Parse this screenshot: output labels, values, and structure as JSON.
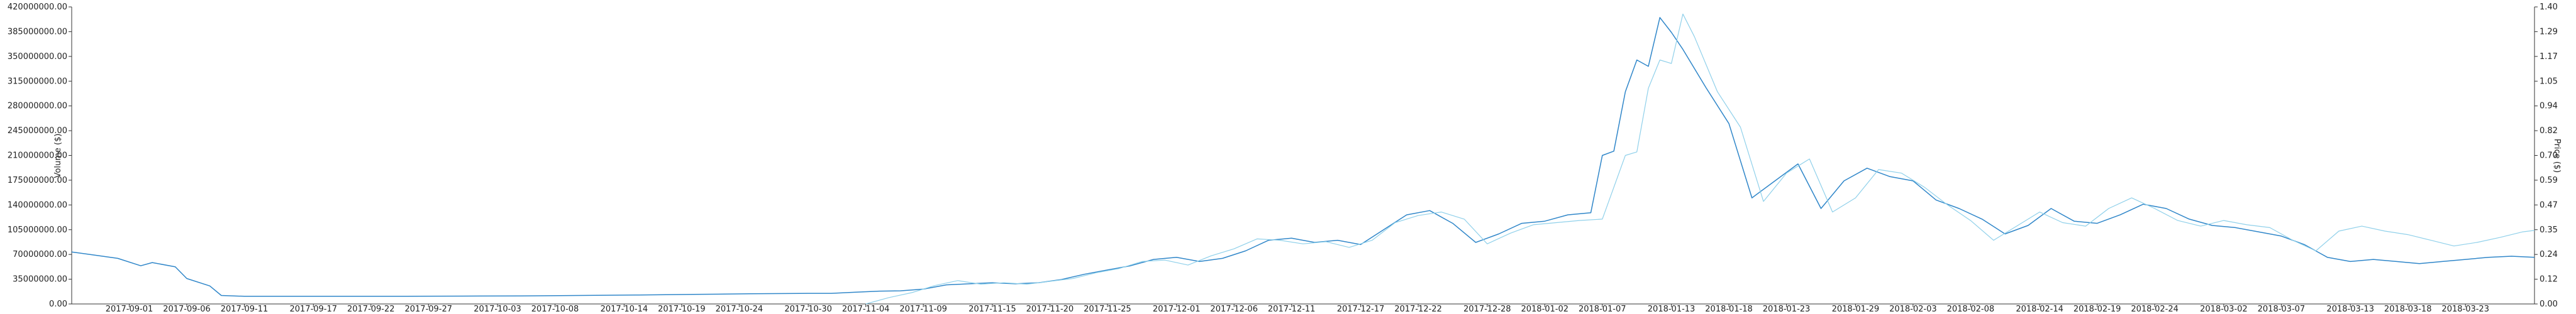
{
  "chart_data": {
    "type": "line",
    "title": "",
    "xlabel": "",
    "ylabel_left": "Volume ($)",
    "ylabel_right": "Price ($)",
    "ylim_left": [
      0,
      420000000
    ],
    "ylim_right": [
      0,
      1.4
    ],
    "grid": false,
    "legend": "none",
    "x_range": [
      "2017-08-27",
      "2018-03-29"
    ],
    "left_ticks": [
      "0.00",
      "35000000.00",
      "70000000.00",
      "105000000.00",
      "140000000.00",
      "175000000.00",
      "210000000.00",
      "245000000.00",
      "280000000.00",
      "315000000.00",
      "350000000.00",
      "385000000.00",
      "420000000.00"
    ],
    "right_ticks": [
      "0.00",
      "0.12",
      "0.24",
      "0.35",
      "0.47",
      "0.59",
      "0.70",
      "0.82",
      "0.94",
      "1.05",
      "1.17",
      "1.29",
      "1.40"
    ],
    "x_ticks": [
      "2017-09-01",
      "2017-09-06",
      "2017-09-11",
      "2017-09-17",
      "2017-09-22",
      "2017-09-27",
      "2017-10-03",
      "2017-10-08",
      "2017-10-14",
      "2017-10-19",
      "2017-10-24",
      "2017-10-30",
      "2017-11-04",
      "2017-11-09",
      "2017-11-15",
      "2017-11-20",
      "2017-11-25",
      "2017-12-01",
      "2017-12-06",
      "2017-12-11",
      "2017-12-17",
      "2017-12-22",
      "2017-12-28",
      "2018-01-02",
      "2018-01-07",
      "2018-01-13",
      "2018-01-18",
      "2018-01-23",
      "2018-01-29",
      "2018-02-03",
      "2018-02-08",
      "2018-02-14",
      "2018-02-19",
      "2018-02-24",
      "2018-03-02",
      "2018-03-07",
      "2018-03-13",
      "2018-03-18",
      "2018-03-23"
    ],
    "series": [
      {
        "key": "price",
        "axis": "right",
        "color": "#2f86c9",
        "points": [
          [
            "2017-08-27",
            0.245
          ],
          [
            "2017-08-29",
            0.23
          ],
          [
            "2017-08-31",
            0.215
          ],
          [
            "2017-09-02",
            0.18
          ],
          [
            "2017-09-03",
            0.195
          ],
          [
            "2017-09-05",
            0.175
          ],
          [
            "2017-09-06",
            0.12
          ],
          [
            "2017-09-08",
            0.085
          ],
          [
            "2017-09-09",
            0.04
          ],
          [
            "2017-09-11",
            0.036
          ],
          [
            "2017-09-15",
            0.036
          ],
          [
            "2017-09-20",
            0.036
          ],
          [
            "2017-09-25",
            0.036
          ],
          [
            "2017-09-30",
            0.037
          ],
          [
            "2017-10-05",
            0.038
          ],
          [
            "2017-10-10",
            0.04
          ],
          [
            "2017-10-15",
            0.042
          ],
          [
            "2017-10-20",
            0.045
          ],
          [
            "2017-10-25",
            0.048
          ],
          [
            "2017-10-30",
            0.05
          ],
          [
            "2017-11-01",
            0.05
          ],
          [
            "2017-11-03",
            0.055
          ],
          [
            "2017-11-05",
            0.06
          ],
          [
            "2017-11-07",
            0.062
          ],
          [
            "2017-11-09",
            0.07
          ],
          [
            "2017-11-11",
            0.09
          ],
          [
            "2017-11-13",
            0.095
          ],
          [
            "2017-11-15",
            0.1
          ],
          [
            "2017-11-17",
            0.095
          ],
          [
            "2017-11-19",
            0.1
          ],
          [
            "2017-11-21",
            0.115
          ],
          [
            "2017-11-23",
            0.14
          ],
          [
            "2017-11-25",
            0.16
          ],
          [
            "2017-11-27",
            0.18
          ],
          [
            "2017-11-29",
            0.21
          ],
          [
            "2017-12-01",
            0.22
          ],
          [
            "2017-12-03",
            0.2
          ],
          [
            "2017-12-05",
            0.215
          ],
          [
            "2017-12-07",
            0.25
          ],
          [
            "2017-12-09",
            0.3
          ],
          [
            "2017-12-11",
            0.31
          ],
          [
            "2017-12-13",
            0.29
          ],
          [
            "2017-12-15",
            0.3
          ],
          [
            "2017-12-17",
            0.28
          ],
          [
            "2017-12-19",
            0.35
          ],
          [
            "2017-12-21",
            0.42
          ],
          [
            "2017-12-23",
            0.44
          ],
          [
            "2017-12-25",
            0.38
          ],
          [
            "2017-12-27",
            0.29
          ],
          [
            "2017-12-29",
            0.33
          ],
          [
            "2017-12-31",
            0.38
          ],
          [
            "2018-01-02",
            0.39
          ],
          [
            "2018-01-04",
            0.42
          ],
          [
            "2018-01-06",
            0.43
          ],
          [
            "2018-01-07",
            0.7
          ],
          [
            "2018-01-08",
            0.72
          ],
          [
            "2018-01-09",
            1.0
          ],
          [
            "2018-01-10",
            1.15
          ],
          [
            "2018-01-11",
            1.12
          ],
          [
            "2018-01-12",
            1.35
          ],
          [
            "2018-01-13",
            1.28
          ],
          [
            "2018-01-14",
            1.2
          ],
          [
            "2018-01-16",
            1.02
          ],
          [
            "2018-01-18",
            0.85
          ],
          [
            "2018-01-20",
            0.5
          ],
          [
            "2018-01-22",
            0.58
          ],
          [
            "2018-01-24",
            0.66
          ],
          [
            "2018-01-26",
            0.45
          ],
          [
            "2018-01-28",
            0.58
          ],
          [
            "2018-01-30",
            0.64
          ],
          [
            "2018-02-01",
            0.6
          ],
          [
            "2018-02-03",
            0.58
          ],
          [
            "2018-02-05",
            0.49
          ],
          [
            "2018-02-07",
            0.45
          ],
          [
            "2018-02-09",
            0.4
          ],
          [
            "2018-02-11",
            0.33
          ],
          [
            "2018-02-13",
            0.37
          ],
          [
            "2018-02-15",
            0.45
          ],
          [
            "2018-02-17",
            0.39
          ],
          [
            "2018-02-19",
            0.38
          ],
          [
            "2018-02-21",
            0.42
          ],
          [
            "2018-02-23",
            0.47
          ],
          [
            "2018-02-25",
            0.45
          ],
          [
            "2018-02-27",
            0.4
          ],
          [
            "2018-03-01",
            0.37
          ],
          [
            "2018-03-03",
            0.36
          ],
          [
            "2018-03-05",
            0.34
          ],
          [
            "2018-03-07",
            0.32
          ],
          [
            "2018-03-09",
            0.28
          ],
          [
            "2018-03-11",
            0.22
          ],
          [
            "2018-03-13",
            0.2
          ],
          [
            "2018-03-15",
            0.21
          ],
          [
            "2018-03-17",
            0.2
          ],
          [
            "2018-03-19",
            0.19
          ],
          [
            "2018-03-21",
            0.2
          ],
          [
            "2018-03-23",
            0.21
          ],
          [
            "2018-03-25",
            0.22
          ],
          [
            "2018-03-27",
            0.225
          ],
          [
            "2018-03-29",
            0.22
          ]
        ]
      },
      {
        "key": "volume",
        "axis": "left",
        "color": "#8fd0ea",
        "points": [
          [
            "2017-11-04",
            0
          ],
          [
            "2017-11-06",
            9000000
          ],
          [
            "2017-11-08",
            16000000
          ],
          [
            "2017-11-10",
            26000000
          ],
          [
            "2017-11-12",
            33000000
          ],
          [
            "2017-11-14",
            28000000
          ],
          [
            "2017-11-16",
            30000000
          ],
          [
            "2017-11-18",
            28000000
          ],
          [
            "2017-11-20",
            32000000
          ],
          [
            "2017-11-22",
            36000000
          ],
          [
            "2017-11-24",
            44000000
          ],
          [
            "2017-11-26",
            50000000
          ],
          [
            "2017-11-28",
            60000000
          ],
          [
            "2017-11-30",
            62000000
          ],
          [
            "2017-12-02",
            55000000
          ],
          [
            "2017-12-04",
            68000000
          ],
          [
            "2017-12-06",
            78000000
          ],
          [
            "2017-12-08",
            92000000
          ],
          [
            "2017-12-10",
            90000000
          ],
          [
            "2017-12-12",
            85000000
          ],
          [
            "2017-12-14",
            88000000
          ],
          [
            "2017-12-16",
            80000000
          ],
          [
            "2017-12-18",
            90000000
          ],
          [
            "2017-12-20",
            115000000
          ],
          [
            "2017-12-22",
            125000000
          ],
          [
            "2017-12-24",
            130000000
          ],
          [
            "2017-12-26",
            120000000
          ],
          [
            "2017-12-28",
            85000000
          ],
          [
            "2017-12-30",
            100000000
          ],
          [
            "2018-01-01",
            112000000
          ],
          [
            "2018-01-03",
            115000000
          ],
          [
            "2018-01-05",
            118000000
          ],
          [
            "2018-01-07",
            120000000
          ],
          [
            "2018-01-09",
            210000000
          ],
          [
            "2018-01-10",
            215000000
          ],
          [
            "2018-01-11",
            305000000
          ],
          [
            "2018-01-12",
            345000000
          ],
          [
            "2018-01-13",
            340000000
          ],
          [
            "2018-01-14",
            410000000
          ],
          [
            "2018-01-15",
            378000000
          ],
          [
            "2018-01-17",
            300000000
          ],
          [
            "2018-01-19",
            250000000
          ],
          [
            "2018-01-21",
            145000000
          ],
          [
            "2018-01-23",
            185000000
          ],
          [
            "2018-01-25",
            205000000
          ],
          [
            "2018-01-27",
            130000000
          ],
          [
            "2018-01-29",
            150000000
          ],
          [
            "2018-01-31",
            190000000
          ],
          [
            "2018-02-02",
            185000000
          ],
          [
            "2018-02-04",
            165000000
          ],
          [
            "2018-02-06",
            140000000
          ],
          [
            "2018-02-08",
            118000000
          ],
          [
            "2018-02-10",
            90000000
          ],
          [
            "2018-02-12",
            110000000
          ],
          [
            "2018-02-14",
            130000000
          ],
          [
            "2018-02-16",
            115000000
          ],
          [
            "2018-02-18",
            110000000
          ],
          [
            "2018-02-20",
            135000000
          ],
          [
            "2018-02-22",
            150000000
          ],
          [
            "2018-02-24",
            135000000
          ],
          [
            "2018-02-26",
            118000000
          ],
          [
            "2018-02-28",
            110000000
          ],
          [
            "2018-03-02",
            118000000
          ],
          [
            "2018-03-04",
            112000000
          ],
          [
            "2018-03-06",
            108000000
          ],
          [
            "2018-03-08",
            90000000
          ],
          [
            "2018-03-10",
            75000000
          ],
          [
            "2018-03-12",
            103000000
          ],
          [
            "2018-03-14",
            110000000
          ],
          [
            "2018-03-16",
            103000000
          ],
          [
            "2018-03-18",
            98000000
          ],
          [
            "2018-03-20",
            90000000
          ],
          [
            "2018-03-22",
            82000000
          ],
          [
            "2018-03-24",
            87000000
          ],
          [
            "2018-03-26",
            94000000
          ],
          [
            "2018-03-28",
            102000000
          ],
          [
            "2018-03-29",
            104000000
          ]
        ]
      }
    ]
  }
}
